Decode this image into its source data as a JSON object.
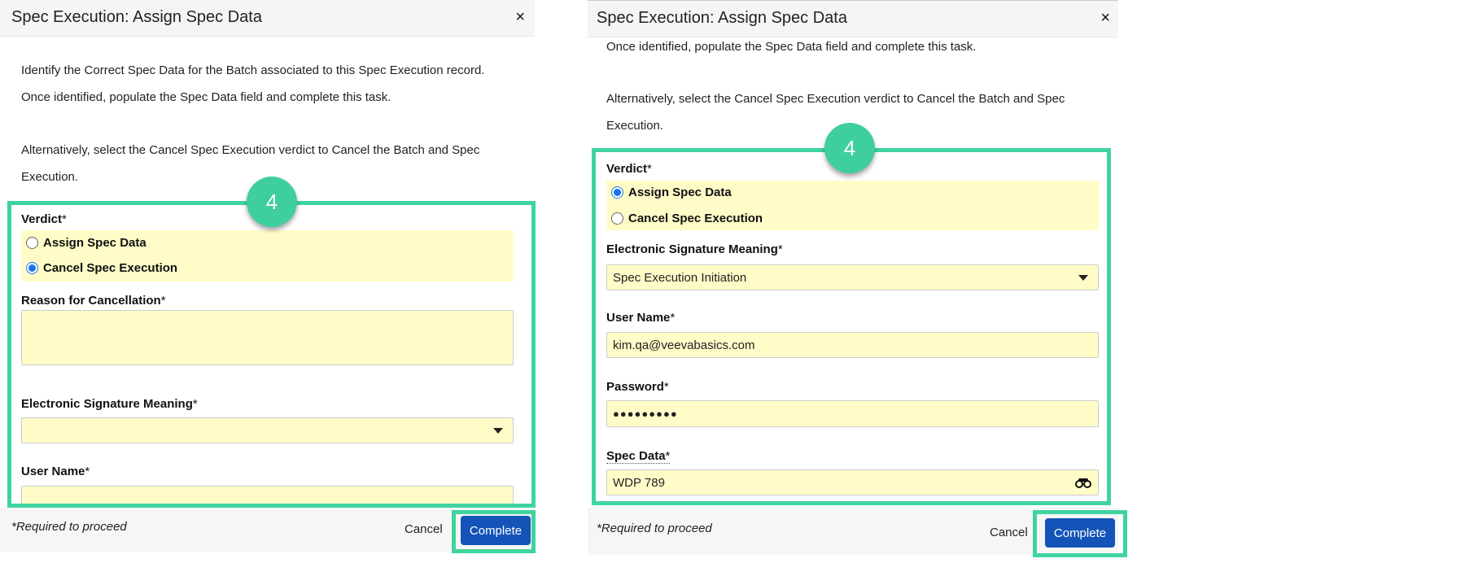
{
  "colors": {
    "highlight": "#40d39f",
    "field_bg": "#fffcc8",
    "primary_button": "#1453b8"
  },
  "left": {
    "title": "Spec Execution: Assign Spec Data",
    "close_icon": "×",
    "instructions": [
      "Identify the Correct Spec Data for the Batch associated to this Spec Execution record.",
      "Once identified, populate the Spec Data field and complete this task.",
      "Alternatively, select the Cancel Spec Execution verdict to Cancel the Batch and Spec",
      "Execution."
    ],
    "badge": "4",
    "verdict_label": "Verdict",
    "required_mark": "*",
    "verdict_options": [
      {
        "label": "Assign Spec Data",
        "selected": false
      },
      {
        "label": "Cancel Spec Execution",
        "selected": true
      }
    ],
    "reason_label": "Reason for Cancellation",
    "reason_value": "",
    "esm_label": "Electronic Signature Meaning",
    "esm_value": "",
    "username_label": "User Name",
    "username_value": "",
    "footer_note": "*Required to proceed",
    "cancel": "Cancel",
    "complete": "Complete"
  },
  "right": {
    "title": "Spec Execution: Assign Spec Data",
    "close_icon": "×",
    "instructions": [
      "Once identified, populate the Spec Data field and complete this task.",
      "Alternatively, select the Cancel Spec Execution verdict to Cancel the Batch and Spec",
      "Execution."
    ],
    "badge": "4",
    "verdict_label": "Verdict",
    "required_mark": "*",
    "verdict_options": [
      {
        "label": "Assign Spec Data",
        "selected": true
      },
      {
        "label": "Cancel Spec Execution",
        "selected": false
      }
    ],
    "esm_label": "Electronic Signature Meaning",
    "esm_value": "Spec Execution Initiation",
    "username_label": "User Name",
    "username_value": "kim.qa@veevabasics.com",
    "password_label": "Password",
    "password_value": "●●●●●●●●●",
    "specdata_label": "Spec Data",
    "specdata_value": "WDP 789",
    "lookup_icon": "binoculars-icon",
    "footer_note": "*Required to proceed",
    "cancel": "Cancel",
    "complete": "Complete"
  }
}
